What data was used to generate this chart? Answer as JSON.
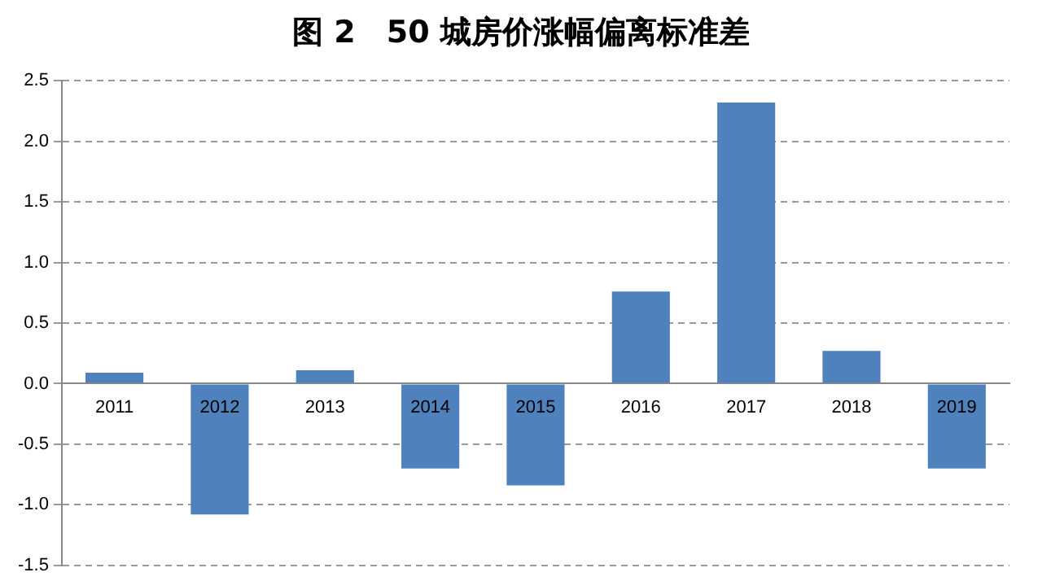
{
  "chart_data": {
    "type": "bar",
    "title": "图 2　50 城房价涨幅偏离标准差",
    "categories": [
      "2011",
      "2012",
      "2013",
      "2014",
      "2015",
      "2016",
      "2017",
      "2018",
      "2019"
    ],
    "values": [
      0.09,
      -1.08,
      0.11,
      -0.7,
      -0.84,
      0.76,
      2.32,
      0.27,
      -0.7
    ],
    "color": "#4f81bd",
    "ylim": [
      -1.5,
      2.5
    ],
    "yticks": [
      {
        "value": -1.5,
        "label": "-1.5"
      },
      {
        "value": -1,
        "label": "-1.0"
      },
      {
        "value": -0.5,
        "label": "-0.5"
      },
      {
        "value": 0,
        "label": "0.0"
      },
      {
        "value": 0.5,
        "label": "0.5"
      },
      {
        "value": 1,
        "label": "1.0"
      },
      {
        "value": 1.5,
        "label": "1.5"
      },
      {
        "value": 2,
        "label": "2.0"
      },
      {
        "value": 2.5,
        "label": "2.5"
      }
    ],
    "grid": "y"
  }
}
